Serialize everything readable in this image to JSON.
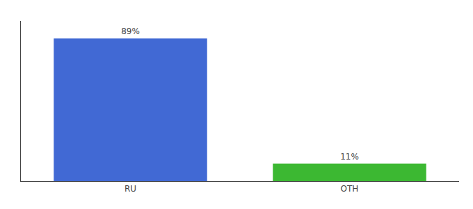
{
  "chart_data": {
    "type": "bar",
    "categories": [
      "RU",
      "OTH"
    ],
    "values": [
      89,
      11
    ],
    "value_labels": [
      "89%",
      "11%"
    ],
    "data_labels": true,
    "colors": [
      "#4169d4",
      "#3cb832"
    ],
    "ylim": [
      0,
      100
    ],
    "grid": false,
    "tick_labels": "x"
  }
}
